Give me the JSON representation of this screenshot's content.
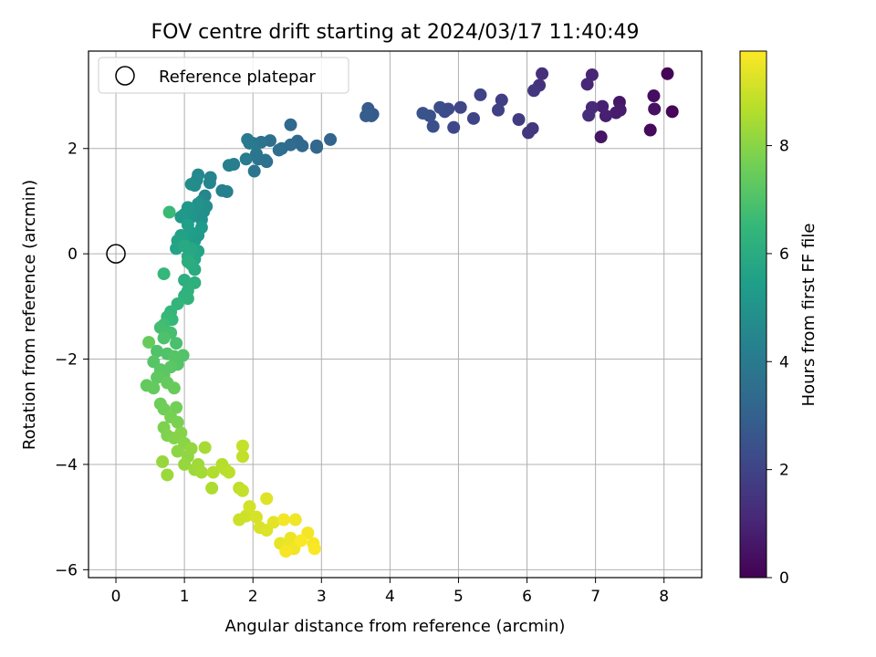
{
  "chart_data": {
    "type": "scatter",
    "title": "FOV centre drift starting at 2024/03/17 11:40:49",
    "xlabel": "Angular distance from reference (arcmin)",
    "ylabel": "Rotation from reference (arcmin)",
    "colorbar_label": "Hours from first FF file",
    "colormap": "viridis",
    "xlim": [
      -0.4,
      8.55
    ],
    "ylim": [
      -6.15,
      3.85
    ],
    "clim": [
      0,
      9.75
    ],
    "xticks": [
      0,
      1,
      2,
      3,
      4,
      5,
      6,
      7,
      8
    ],
    "yticks": [
      -6,
      -4,
      -2,
      0,
      2
    ],
    "colorbar_ticks": [
      0,
      2,
      4,
      6,
      8
    ],
    "grid": true,
    "legend": {
      "placement": "top-left",
      "entries": [
        "Reference platepar"
      ]
    },
    "reference_point": {
      "x": 0,
      "y": 0
    },
    "points": [
      [
        8.05,
        3.42,
        0.1
      ],
      [
        8.12,
        2.7,
        0.15
      ],
      [
        7.8,
        2.35,
        0.25
      ],
      [
        7.85,
        3.0,
        0.35
      ],
      [
        7.86,
        2.75,
        0.45
      ],
      [
        7.08,
        2.22,
        0.55
      ],
      [
        7.35,
        2.88,
        0.6
      ],
      [
        7.36,
        2.73,
        0.7
      ],
      [
        7.3,
        2.68,
        0.75
      ],
      [
        7.15,
        2.62,
        0.85
      ],
      [
        7.1,
        2.8,
        0.9
      ],
      [
        6.95,
        3.4,
        1.0
      ],
      [
        6.88,
        3.22,
        1.05
      ],
      [
        6.95,
        2.78,
        1.1
      ],
      [
        6.9,
        2.63,
        1.2
      ],
      [
        6.22,
        3.42,
        1.35
      ],
      [
        6.18,
        3.2,
        1.4
      ],
      [
        6.1,
        3.1,
        1.5
      ],
      [
        6.08,
        2.38,
        1.55
      ],
      [
        6.02,
        2.3,
        1.6
      ],
      [
        5.88,
        2.55,
        1.7
      ],
      [
        5.63,
        2.92,
        1.8
      ],
      [
        5.58,
        2.73,
        1.9
      ],
      [
        5.32,
        3.02,
        1.95
      ],
      [
        5.22,
        2.57,
        2.0
      ],
      [
        5.03,
        2.78,
        2.1
      ],
      [
        4.93,
        2.4,
        2.15
      ],
      [
        4.85,
        2.75,
        2.2
      ],
      [
        4.8,
        2.7,
        2.25
      ],
      [
        4.73,
        2.78,
        2.3
      ],
      [
        4.63,
        2.42,
        2.4
      ],
      [
        4.58,
        2.62,
        2.45
      ],
      [
        4.48,
        2.67,
        2.5
      ],
      [
        3.75,
        2.65,
        2.7
      ],
      [
        3.73,
        2.62,
        2.75
      ],
      [
        3.68,
        2.76,
        2.8
      ],
      [
        3.65,
        2.62,
        2.85
      ],
      [
        3.13,
        2.17,
        3.1
      ],
      [
        2.93,
        2.05,
        3.15
      ],
      [
        2.93,
        2.02,
        3.2
      ],
      [
        2.72,
        2.05,
        3.25
      ],
      [
        2.65,
        2.14,
        3.3
      ],
      [
        2.55,
        2.45,
        3.35
      ],
      [
        2.55,
        2.07,
        3.4
      ],
      [
        2.42,
        2.0,
        3.45
      ],
      [
        2.38,
        1.97,
        3.5
      ],
      [
        2.25,
        2.15,
        3.55
      ],
      [
        2.2,
        1.75,
        3.6
      ],
      [
        2.18,
        1.78,
        3.65
      ],
      [
        2.12,
        2.12,
        3.7
      ],
      [
        2.08,
        1.8,
        3.75
      ],
      [
        2.05,
        1.9,
        3.8
      ],
      [
        2.02,
        1.57,
        3.85
      ],
      [
        2.0,
        2.1,
        3.9
      ],
      [
        1.95,
        2.1,
        3.95
      ],
      [
        1.92,
        2.17,
        4.0
      ],
      [
        1.9,
        1.8,
        4.05
      ],
      [
        1.72,
        1.7,
        4.15
      ],
      [
        1.65,
        1.68,
        4.2
      ],
      [
        1.62,
        1.18,
        4.25
      ],
      [
        1.55,
        1.2,
        4.3
      ],
      [
        1.38,
        1.45,
        4.4
      ],
      [
        1.37,
        1.35,
        4.45
      ],
      [
        1.3,
        1.1,
        4.5
      ],
      [
        1.25,
        1.0,
        4.55
      ],
      [
        1.2,
        1.5,
        4.6
      ],
      [
        1.18,
        1.4,
        4.65
      ],
      [
        1.15,
        1.3,
        4.7
      ],
      [
        1.1,
        1.32,
        4.75
      ],
      [
        1.32,
        0.9,
        4.8
      ],
      [
        1.28,
        0.8,
        4.85
      ],
      [
        1.25,
        0.65,
        4.9
      ],
      [
        1.2,
        0.95,
        4.95
      ],
      [
        1.15,
        0.85,
        5.0
      ],
      [
        1.1,
        0.7,
        5.05
      ],
      [
        1.05,
        0.88,
        5.1
      ],
      [
        1.0,
        0.75,
        5.15
      ],
      [
        0.95,
        0.7,
        5.2
      ],
      [
        1.25,
        0.5,
        5.25
      ],
      [
        1.2,
        0.35,
        5.3
      ],
      [
        1.15,
        0.25,
        5.35
      ],
      [
        1.1,
        0.4,
        5.4
      ],
      [
        1.05,
        0.55,
        5.45
      ],
      [
        1.0,
        0.3,
        5.5
      ],
      [
        0.95,
        0.35,
        5.55
      ],
      [
        0.9,
        0.25,
        5.6
      ],
      [
        0.88,
        0.1,
        5.65
      ],
      [
        1.2,
        0.05,
        5.7
      ],
      [
        1.15,
        -0.1,
        5.75
      ],
      [
        1.1,
        0.1,
        5.8
      ],
      [
        1.05,
        -0.05,
        5.85
      ],
      [
        1.0,
        0.15,
        5.9
      ],
      [
        1.15,
        -0.3,
        5.95
      ],
      [
        1.1,
        -0.2,
        6.0
      ],
      [
        1.05,
        -0.15,
        6.05
      ],
      [
        1.0,
        -0.5,
        6.1
      ],
      [
        1.15,
        -0.55,
        6.15
      ],
      [
        1.05,
        -0.7,
        6.2
      ],
      [
        1.0,
        -0.8,
        6.25
      ],
      [
        1.05,
        -0.85,
        6.3
      ],
      [
        0.9,
        -0.95,
        6.35
      ],
      [
        0.8,
        -1.1,
        6.45
      ],
      [
        0.82,
        -1.25,
        6.5
      ],
      [
        0.75,
        -1.2,
        6.55
      ],
      [
        0.7,
        -0.38,
        6.5
      ],
      [
        0.78,
        0.79,
        6.6
      ],
      [
        0.7,
        -1.35,
        6.7
      ],
      [
        0.65,
        -1.4,
        6.8
      ],
      [
        0.8,
        -1.5,
        6.85
      ],
      [
        0.88,
        -1.7,
        6.9
      ],
      [
        0.7,
        -1.6,
        6.95
      ],
      [
        0.6,
        -1.85,
        7.0
      ],
      [
        0.75,
        -1.9,
        7.0
      ],
      [
        0.98,
        -1.93,
        7.05
      ],
      [
        0.85,
        -1.95,
        7.1
      ],
      [
        0.9,
        -2.1,
        7.1
      ],
      [
        0.55,
        -2.05,
        7.15
      ],
      [
        0.65,
        -2.2,
        7.2
      ],
      [
        0.8,
        -2.15,
        7.2
      ],
      [
        0.7,
        -2.3,
        7.25
      ],
      [
        0.6,
        -2.35,
        7.3
      ],
      [
        0.45,
        -2.5,
        7.35
      ],
      [
        0.55,
        -2.55,
        7.4
      ],
      [
        0.75,
        -2.45,
        7.4
      ],
      [
        0.85,
        -2.55,
        7.45
      ],
      [
        0.48,
        -1.68,
        7.45
      ],
      [
        0.65,
        -2.85,
        7.55
      ],
      [
        0.7,
        -2.95,
        7.6
      ],
      [
        0.88,
        -2.92,
        7.65
      ],
      [
        0.8,
        -3.1,
        7.7
      ],
      [
        0.9,
        -3.2,
        7.75
      ],
      [
        0.7,
        -3.3,
        7.8
      ],
      [
        0.75,
        -3.45,
        7.85
      ],
      [
        0.85,
        -3.5,
        7.9
      ],
      [
        0.95,
        -3.4,
        7.95
      ],
      [
        1.0,
        -3.6,
        8.0
      ],
      [
        0.9,
        -3.75,
        8.05
      ],
      [
        1.05,
        -3.85,
        8.1
      ],
      [
        1.1,
        -3.7,
        8.15
      ],
      [
        1.0,
        -4.0,
        8.2
      ],
      [
        0.68,
        -3.95,
        8.2
      ],
      [
        0.75,
        -4.2,
        8.25
      ],
      [
        1.15,
        -4.1,
        8.3
      ],
      [
        1.2,
        -4.0,
        8.35
      ],
      [
        1.25,
        -4.15,
        8.4
      ],
      [
        1.3,
        -3.68,
        8.45
      ],
      [
        1.4,
        -4.45,
        8.55
      ],
      [
        1.42,
        -4.15,
        8.6
      ],
      [
        1.55,
        -4.0,
        8.65
      ],
      [
        1.6,
        -4.1,
        8.7
      ],
      [
        1.65,
        -4.15,
        8.75
      ],
      [
        1.8,
        -4.45,
        8.8
      ],
      [
        1.85,
        -3.85,
        8.85
      ],
      [
        1.85,
        -3.65,
        8.9
      ],
      [
        1.85,
        -4.5,
        8.9
      ],
      [
        1.8,
        -5.05,
        9.0
      ],
      [
        1.9,
        -4.98,
        9.05
      ],
      [
        1.95,
        -4.8,
        9.1
      ],
      [
        2.05,
        -5.0,
        9.15
      ],
      [
        2.1,
        -5.2,
        9.2
      ],
      [
        2.2,
        -5.25,
        9.25
      ],
      [
        2.2,
        -4.65,
        9.3
      ],
      [
        2.3,
        -5.1,
        9.35
      ],
      [
        2.4,
        -5.5,
        9.4
      ],
      [
        2.5,
        -5.55,
        9.45
      ],
      [
        2.55,
        -5.4,
        9.5
      ],
      [
        2.6,
        -5.6,
        9.55
      ],
      [
        2.62,
        -5.05,
        9.55
      ],
      [
        2.8,
        -5.3,
        9.6
      ],
      [
        2.88,
        -5.5,
        9.65
      ],
      [
        2.48,
        -5.65,
        9.65
      ],
      [
        2.9,
        -5.6,
        9.7
      ],
      [
        2.7,
        -5.45,
        9.7
      ],
      [
        2.45,
        -5.05,
        9.6
      ]
    ]
  }
}
